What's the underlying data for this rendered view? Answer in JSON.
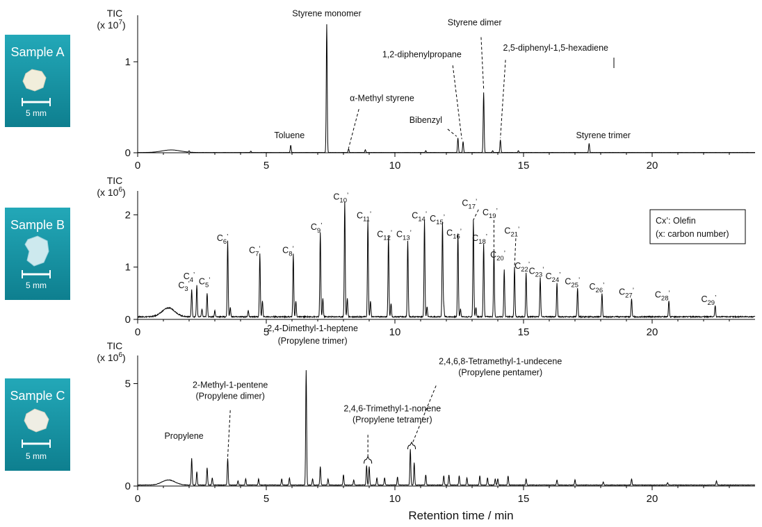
{
  "chart_data": [
    {
      "type": "line",
      "panel": "A",
      "sample_label": "Sample A",
      "scale_label": "5 mm",
      "ylabel_line1": "TIC",
      "ylabel_line2": "(x 10",
      "ylabel_exp": "7",
      "ylabel_close": ")",
      "ylim": [
        0,
        1.45
      ],
      "yticks": [
        0,
        1
      ],
      "xlim": [
        0,
        24
      ],
      "xticks": [
        0,
        5,
        10,
        15,
        20
      ],
      "baseline": 0.003,
      "hump": {
        "center": 1.3,
        "width": 0.5,
        "height": 0.028
      },
      "peaks": [
        [
          5.95,
          0.08
        ],
        [
          7.35,
          1.41
        ],
        [
          8.2,
          0.04
        ],
        [
          8.85,
          0.03
        ],
        [
          12.45,
          0.16
        ],
        [
          12.65,
          0.12
        ],
        [
          13.45,
          0.66
        ],
        [
          14.1,
          0.14
        ],
        [
          14.8,
          0.02
        ],
        [
          17.55,
          0.1
        ],
        [
          2.0,
          0.015
        ],
        [
          4.4,
          0.015
        ],
        [
          11.2,
          0.02
        ],
        [
          13.8,
          0.02
        ]
      ],
      "labels": [
        {
          "text": "Styrene monomer",
          "x": 7.35,
          "y": 1.5
        },
        {
          "text": "Toluene",
          "x": 5.9,
          "y": 0.16
        },
        {
          "text": "α-Methyl styrene",
          "x": 9.5,
          "y": 0.57
        },
        {
          "text": "1,2-diphenylpropane",
          "x": 11.05,
          "y": 1.05
        },
        {
          "text": "Bibenzyl",
          "x": 11.2,
          "y": 0.33
        },
        {
          "text": "Styrene dimer",
          "x": 13.1,
          "y": 1.4
        },
        {
          "text": "2,5-diphenyl-1,5-hexadiene",
          "x": 16.25,
          "y": 1.12
        }
      ],
      "leaders": [
        [
          8.6,
          0.48,
          8.2,
          0.05
        ],
        [
          12.25,
          0.96,
          12.6,
          0.15
        ],
        [
          12.05,
          0.26,
          12.4,
          0.18
        ],
        [
          13.35,
          1.27,
          13.45,
          0.7
        ],
        [
          14.3,
          1.02,
          14.1,
          0.16
        ]
      ],
      "extra_labels": [
        {
          "text": "Styrene trimer",
          "x": 18.1,
          "y": 0.16
        }
      ]
    },
    {
      "type": "line",
      "panel": "B",
      "sample_label": "Sample B",
      "scale_label": "5 mm",
      "ylabel_line1": "TIC",
      "ylabel_line2": "(x 10",
      "ylabel_exp": "6",
      "ylabel_close": ")",
      "ylim": [
        0,
        2.35
      ],
      "yticks": [
        0,
        1,
        2
      ],
      "xlim": [
        0,
        24
      ],
      "xticks": [
        0,
        5,
        10,
        15,
        20
      ],
      "baseline": 0.05,
      "hump": {
        "center": 1.2,
        "width": 0.35,
        "height": 0.17
      },
      "peaks": [
        [
          2.1,
          0.52
        ],
        [
          2.3,
          0.6
        ],
        [
          2.7,
          0.45
        ],
        [
          3.5,
          1.45
        ],
        [
          4.75,
          1.2
        ],
        [
          6.05,
          1.2
        ],
        [
          7.1,
          1.62
        ],
        [
          8.05,
          2.2
        ],
        [
          8.95,
          1.85
        ],
        [
          9.75,
          1.55
        ],
        [
          10.5,
          1.45
        ],
        [
          11.15,
          1.85
        ],
        [
          11.85,
          1.8
        ],
        [
          12.45,
          1.6
        ],
        [
          13.05,
          1.85
        ],
        [
          13.45,
          1.4
        ],
        [
          13.85,
          1.25
        ],
        [
          14.25,
          0.9
        ],
        [
          14.65,
          0.95
        ],
        [
          15.1,
          0.85
        ],
        [
          15.65,
          0.75
        ],
        [
          16.3,
          0.65
        ],
        [
          17.1,
          0.55
        ],
        [
          18.05,
          0.45
        ],
        [
          19.2,
          0.35
        ],
        [
          20.65,
          0.3
        ],
        [
          22.45,
          0.22
        ],
        [
          2.5,
          0.15
        ],
        [
          3.0,
          0.12
        ],
        [
          3.6,
          0.18
        ],
        [
          4.3,
          0.12
        ],
        [
          4.85,
          0.3
        ],
        [
          6.15,
          0.3
        ],
        [
          7.2,
          0.35
        ],
        [
          8.15,
          0.35
        ],
        [
          9.05,
          0.3
        ],
        [
          9.85,
          0.25
        ],
        [
          11.25,
          0.2
        ],
        [
          11.9,
          0.2
        ],
        [
          12.55,
          0.15
        ],
        [
          13.15,
          0.18
        ]
      ],
      "labels": [
        {
          "text": "C",
          "sub": "3",
          "x": 1.8,
          "y": 0.6
        },
        {
          "text": "C",
          "sub": "4",
          "x": 2.0,
          "y": 0.77
        },
        {
          "text": "C",
          "sub": "5",
          "x": 2.6,
          "y": 0.67
        },
        {
          "text": "C",
          "sub": "6",
          "x": 3.3,
          "y": 1.5
        },
        {
          "text": "C",
          "sub": "7",
          "x": 4.55,
          "y": 1.27
        },
        {
          "text": "C",
          "sub": "8",
          "x": 5.85,
          "y": 1.27
        },
        {
          "text": "C",
          "sub": "9",
          "x": 6.95,
          "y": 1.71
        },
        {
          "text": "C",
          "sub": "10",
          "x": 7.9,
          "y": 2.29
        },
        {
          "text": "C",
          "sub": "11",
          "x": 8.8,
          "y": 1.93
        },
        {
          "text": "C",
          "sub": "12",
          "x": 9.6,
          "y": 1.57
        },
        {
          "text": "C",
          "sub": "13",
          "x": 10.35,
          "y": 1.57
        },
        {
          "text": "C",
          "sub": "14",
          "x": 10.95,
          "y": 1.93
        },
        {
          "text": "C",
          "sub": "15",
          "x": 11.65,
          "y": 1.87
        },
        {
          "text": "C",
          "sub": "16",
          "x": 12.3,
          "y": 1.6
        },
        {
          "text": "C",
          "sub": "17",
          "x": 12.9,
          "y": 2.17
        },
        {
          "text": "C",
          "sub": "18",
          "x": 13.3,
          "y": 1.5
        },
        {
          "text": "C",
          "sub": "19",
          "x": 13.7,
          "y": 1.99
        },
        {
          "text": "C",
          "sub": "20",
          "x": 14.0,
          "y": 1.18
        },
        {
          "text": "C",
          "sub": "21",
          "x": 14.55,
          "y": 1.64
        },
        {
          "text": "C",
          "sub": "22",
          "x": 14.95,
          "y": 0.97
        },
        {
          "text": "C",
          "sub": "23",
          "x": 15.5,
          "y": 0.87
        },
        {
          "text": "C",
          "sub": "24",
          "x": 16.15,
          "y": 0.77
        },
        {
          "text": "C",
          "sub": "25",
          "x": 16.9,
          "y": 0.67
        },
        {
          "text": "C",
          "sub": "26",
          "x": 17.85,
          "y": 0.57
        },
        {
          "text": "C",
          "sub": "27",
          "x": 19.0,
          "y": 0.47
        },
        {
          "text": "C",
          "sub": "28",
          "x": 20.4,
          "y": 0.42
        },
        {
          "text": "C",
          "sub": "29",
          "x": 22.2,
          "y": 0.33
        }
      ],
      "leaders": [
        [
          13.25,
          2.1,
          13.05,
          1.9
        ],
        [
          13.85,
          1.9,
          13.85,
          1.3
        ],
        [
          14.7,
          1.55,
          14.65,
          1.0
        ]
      ],
      "legend": {
        "line1": "Cx’: Olefin",
        "line2": "(x: carbon number)",
        "position": "top-right"
      }
    },
    {
      "type": "line",
      "panel": "C",
      "sample_label": "Sample C",
      "scale_label": "5 mm",
      "ylabel_line1": "TIC",
      "ylabel_line2": "(x 10",
      "ylabel_exp": "6",
      "ylabel_close": ")",
      "ylim": [
        0,
        6.1
      ],
      "yticks": [
        0,
        5
      ],
      "xlim": [
        0,
        24
      ],
      "xticks": [
        0,
        5,
        10,
        15,
        20
      ],
      "baseline": 0.05,
      "hump": {
        "center": 1.2,
        "width": 0.35,
        "height": 0.25
      },
      "peaks": [
        [
          2.1,
          1.3
        ],
        [
          2.3,
          0.65
        ],
        [
          2.7,
          0.85
        ],
        [
          3.5,
          1.3
        ],
        [
          4.2,
          0.3
        ],
        [
          4.7,
          0.3
        ],
        [
          5.6,
          0.3
        ],
        [
          5.9,
          0.35
        ],
        [
          6.55,
          5.6
        ],
        [
          7.1,
          0.9
        ],
        [
          7.4,
          0.3
        ],
        [
          8.0,
          0.5
        ],
        [
          8.9,
          0.95
        ],
        [
          9.0,
          0.9
        ],
        [
          9.3,
          0.35
        ],
        [
          9.6,
          0.35
        ],
        [
          10.1,
          0.4
        ],
        [
          10.6,
          1.75
        ],
        [
          10.75,
          1.1
        ],
        [
          11.2,
          0.5
        ],
        [
          11.9,
          0.45
        ],
        [
          12.1,
          0.5
        ],
        [
          12.5,
          0.45
        ],
        [
          13.3,
          0.45
        ],
        [
          13.6,
          0.35
        ],
        [
          14.4,
          0.45
        ],
        [
          15.1,
          0.3
        ],
        [
          16.3,
          0.25
        ],
        [
          17.0,
          0.25
        ],
        [
          19.2,
          0.3
        ],
        [
          22.5,
          0.2
        ],
        [
          2.9,
          0.35
        ],
        [
          3.9,
          0.2
        ],
        [
          6.8,
          0.3
        ],
        [
          8.4,
          0.25
        ],
        [
          12.8,
          0.35
        ],
        [
          13.9,
          0.3
        ],
        [
          14.0,
          0.3
        ],
        [
          18.1,
          0.15
        ],
        [
          20.6,
          0.12
        ]
      ],
      "labels": [
        {
          "text": "Propylene",
          "x": 1.8,
          "y": 2.3
        },
        {
          "text": "2-Methyl-1-pentene",
          "x": 3.6,
          "y": 4.8
        },
        {
          "text": "(Propylene dimer)",
          "x": 3.6,
          "y": 4.25
        },
        {
          "text": "2,4-Dimethyl-1-heptene",
          "x": 6.8,
          "y": 7.55
        },
        {
          "text": "(Propylene trimer)",
          "x": 6.8,
          "y": 6.95
        },
        {
          "text": "2,4,6-Trimethyl-1-nonene",
          "x": 9.9,
          "y": 3.65
        },
        {
          "text": "(Propylene tetramer)",
          "x": 9.9,
          "y": 3.1
        },
        {
          "text": "2,4,6,8-Tetramethyl-1-undecene",
          "x": 14.1,
          "y": 5.95
        },
        {
          "text": "(Propylene pentamer)",
          "x": 14.1,
          "y": 5.4
        }
      ],
      "leaders": [
        [
          3.6,
          3.7,
          3.5,
          1.4
        ],
        [
          8.95,
          2.5,
          8.95,
          1.4
        ],
        [
          11.6,
          4.9,
          10.7,
          2.15
        ]
      ],
      "braces": [
        {
          "x1": 8.8,
          "x2": 9.1,
          "y": 1.3
        },
        {
          "x1": 10.5,
          "x2": 10.8,
          "y": 2.0
        }
      ]
    }
  ],
  "figure": {
    "xlabel": "Retention time / min"
  }
}
